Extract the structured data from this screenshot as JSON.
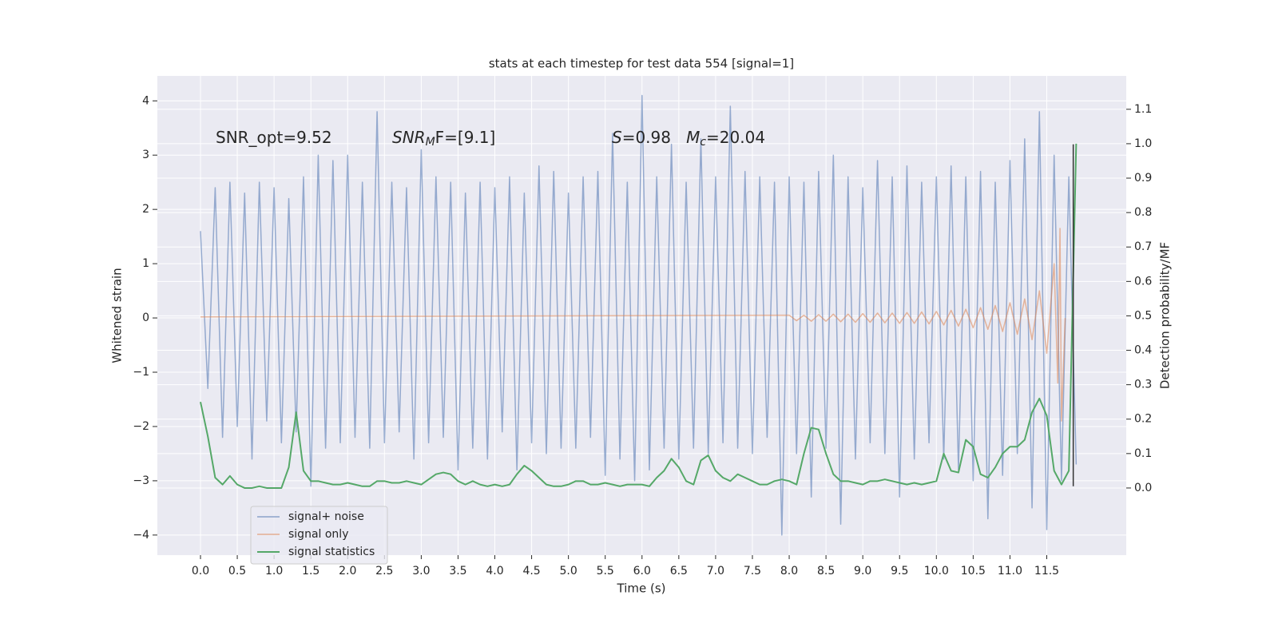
{
  "chart_data": {
    "type": "line",
    "title": "stats at each timestep for test data 554 [signal=1]",
    "x_label": "Time (s)",
    "y_label": "Whitened strain",
    "y2_label": "Detection probability/MF",
    "xlim": [
      -0.586,
      12.58
    ],
    "ylim": [
      -4.37,
      4.46
    ],
    "y2lim": [
      -0.195,
      1.197
    ],
    "xticks": [
      {
        "value": 0,
        "label": "0.0"
      },
      {
        "value": 0.5,
        "label": "0.5"
      },
      {
        "value": 1,
        "label": "1.0"
      },
      {
        "value": 1.5,
        "label": "1.5"
      },
      {
        "value": 2,
        "label": "2.0"
      },
      {
        "value": 2.5,
        "label": "2.5"
      },
      {
        "value": 3,
        "label": "3.0"
      },
      {
        "value": 3.5,
        "label": "3.5"
      },
      {
        "value": 4,
        "label": "4.0"
      },
      {
        "value": 4.5,
        "label": "4.5"
      },
      {
        "value": 5,
        "label": "5.0"
      },
      {
        "value": 5.5,
        "label": "5.5"
      },
      {
        "value": 6,
        "label": "6.0"
      },
      {
        "value": 6.5,
        "label": "6.5"
      },
      {
        "value": 7,
        "label": "7.0"
      },
      {
        "value": 7.5,
        "label": "7.5"
      },
      {
        "value": 8,
        "label": "8.0"
      },
      {
        "value": 8.5,
        "label": "8.5"
      },
      {
        "value": 9,
        "label": "9.0"
      },
      {
        "value": 9.5,
        "label": "9.5"
      },
      {
        "value": 10,
        "label": "10.0"
      },
      {
        "value": 10.5,
        "label": "10.5"
      },
      {
        "value": 11,
        "label": "11.0"
      },
      {
        "value": 11.5,
        "label": "11.5"
      }
    ],
    "yticks": [
      {
        "value": -4,
        "label": "−4"
      },
      {
        "value": -3,
        "label": "−3"
      },
      {
        "value": -2,
        "label": "−2"
      },
      {
        "value": -1,
        "label": "−1"
      },
      0,
      1,
      2,
      3,
      4
    ],
    "y2ticks": [
      {
        "value": 0,
        "label": "0.0"
      },
      {
        "value": 0.1,
        "label": "0.1"
      },
      {
        "value": 0.2,
        "label": "0.2"
      },
      {
        "value": 0.3,
        "label": "0.3"
      },
      {
        "value": 0.4,
        "label": "0.4"
      },
      {
        "value": 0.5,
        "label": "0.5"
      },
      {
        "value": 0.6,
        "label": "0.6"
      },
      {
        "value": 0.7,
        "label": "0.7"
      },
      {
        "value": 0.8,
        "label": "0.8"
      },
      {
        "value": 0.9,
        "label": "0.9"
      },
      {
        "value": 1.0,
        "label": "1.0"
      },
      {
        "value": 1.1,
        "label": "1.1"
      }
    ],
    "grid": true,
    "legend": "lower left",
    "series": [
      {
        "name": "signal+ noise",
        "color": "#4c72b0",
        "x": [
          0,
          0.1,
          0.2,
          0.3,
          0.4,
          0.5,
          0.6,
          0.7,
          0.8,
          0.9,
          1,
          1.1,
          1.2,
          1.3,
          1.4,
          1.5,
          1.6,
          1.7,
          1.8,
          1.9,
          2,
          2.1,
          2.2,
          2.3,
          2.4,
          2.5,
          2.6,
          2.7,
          2.8,
          2.9,
          3,
          3.1,
          3.2,
          3.3,
          3.4,
          3.5,
          3.6,
          3.7,
          3.8,
          3.9,
          4,
          4.1,
          4.2,
          4.3,
          4.4,
          4.5,
          4.6,
          4.7,
          4.8,
          4.9,
          5,
          5.1,
          5.2,
          5.3,
          5.4,
          5.5,
          5.6,
          5.7,
          5.8,
          5.9,
          6,
          6.1,
          6.2,
          6.3,
          6.4,
          6.5,
          6.6,
          6.7,
          6.8,
          6.9,
          7,
          7.1,
          7.2,
          7.3,
          7.4,
          7.5,
          7.6,
          7.7,
          7.8,
          7.9,
          8,
          8.1,
          8.2,
          8.3,
          8.4,
          8.5,
          8.6,
          8.7,
          8.8,
          8.9,
          9,
          9.1,
          9.2,
          9.3,
          9.4,
          9.5,
          9.6,
          9.7,
          9.8,
          9.9,
          10,
          10.1,
          10.2,
          10.3,
          10.4,
          10.5,
          10.6,
          10.7,
          10.8,
          10.9,
          11,
          11.1,
          11.2,
          11.3,
          11.4,
          11.5,
          11.6,
          11.7,
          11.8,
          11.9
        ],
        "values": [
          1.6,
          -1.3,
          2.4,
          -2.2,
          2.5,
          -2.0,
          2.3,
          -2.6,
          2.5,
          -1.9,
          2.4,
          -2.3,
          2.2,
          -2.1,
          2.6,
          -3.1,
          3.0,
          -2.4,
          2.9,
          -2.3,
          3.0,
          -2.2,
          2.5,
          -2.4,
          3.8,
          -2.3,
          2.5,
          -2.1,
          2.4,
          -2.6,
          3.1,
          -2.3,
          2.6,
          -2.2,
          2.5,
          -2.8,
          2.3,
          -2.4,
          2.5,
          -2.6,
          2.4,
          -2.1,
          2.6,
          -2.8,
          2.3,
          -2.3,
          2.8,
          -2.5,
          2.7,
          -2.4,
          2.3,
          -2.4,
          2.6,
          -2.2,
          2.7,
          -2.9,
          3.4,
          -2.6,
          2.5,
          -3.0,
          4.1,
          -2.8,
          2.6,
          -2.4,
          3.2,
          -2.6,
          2.5,
          -2.4,
          3.3,
          -2.5,
          2.6,
          -2.3,
          3.9,
          -2.4,
          2.7,
          -2.5,
          2.6,
          -2.2,
          2.5,
          -4.0,
          2.6,
          -2.5,
          2.5,
          -3.3,
          2.7,
          -2.4,
          3.0,
          -3.8,
          2.6,
          -2.6,
          2.4,
          -2.3,
          2.9,
          -2.5,
          2.6,
          -3.3,
          2.8,
          -2.6,
          2.5,
          -2.3,
          2.6,
          -2.6,
          2.8,
          -2.8,
          2.6,
          -3.0,
          2.7,
          -3.7,
          2.5,
          -2.9,
          2.9,
          -2.5,
          3.3,
          -3.5,
          3.8,
          -3.9,
          3.0,
          -3.0,
          2.6,
          -2.7
        ]
      },
      {
        "name": "signal only",
        "color": "#dd8452",
        "x": [
          0,
          8,
          8.1,
          8.2,
          8.3,
          8.4,
          8.5,
          8.6,
          8.7,
          8.8,
          8.9,
          9,
          9.1,
          9.2,
          9.3,
          9.4,
          9.5,
          9.6,
          9.7,
          9.8,
          9.9,
          10,
          10.1,
          10.2,
          10.3,
          10.4,
          10.5,
          10.6,
          10.7,
          10.8,
          10.9,
          11,
          11.1,
          11.2,
          11.3,
          11.4,
          11.5,
          11.6,
          11.65,
          11.68,
          11.7,
          11.75
        ],
        "values": [
          0.02,
          0.05,
          -0.05,
          0.05,
          -0.06,
          0.06,
          -0.06,
          0.07,
          -0.07,
          0.07,
          -0.08,
          0.08,
          -0.08,
          0.09,
          -0.09,
          0.09,
          -0.1,
          0.1,
          -0.1,
          0.11,
          -0.11,
          0.12,
          -0.13,
          0.14,
          -0.15,
          0.16,
          -0.18,
          0.19,
          -0.21,
          0.23,
          -0.25,
          0.28,
          -0.3,
          0.35,
          -0.4,
          0.5,
          -0.65,
          1.0,
          -1.2,
          1.65,
          -1.9,
          0
        ]
      },
      {
        "name": "signal statistics",
        "color": "#55a868",
        "axis": "y2",
        "x": [
          0,
          0.1,
          0.2,
          0.3,
          0.4,
          0.5,
          0.6,
          0.7,
          0.8,
          0.9,
          1,
          1.1,
          1.2,
          1.3,
          1.4,
          1.5,
          1.6,
          1.7,
          1.8,
          1.9,
          2,
          2.1,
          2.2,
          2.3,
          2.4,
          2.5,
          2.6,
          2.7,
          2.8,
          2.9,
          3,
          3.1,
          3.2,
          3.3,
          3.4,
          3.5,
          3.6,
          3.7,
          3.8,
          3.9,
          4,
          4.1,
          4.2,
          4.3,
          4.4,
          4.5,
          4.6,
          4.7,
          4.8,
          4.9,
          5,
          5.1,
          5.2,
          5.3,
          5.4,
          5.5,
          5.6,
          5.7,
          5.8,
          5.9,
          6,
          6.1,
          6.2,
          6.3,
          6.4,
          6.5,
          6.6,
          6.7,
          6.8,
          6.9,
          7,
          7.1,
          7.2,
          7.3,
          7.4,
          7.5,
          7.6,
          7.7,
          7.8,
          7.9,
          8,
          8.1,
          8.2,
          8.3,
          8.4,
          8.5,
          8.6,
          8.7,
          8.8,
          8.9,
          9,
          9.1,
          9.2,
          9.3,
          9.4,
          9.5,
          9.6,
          9.7,
          9.8,
          9.9,
          10,
          10.1,
          10.2,
          10.3,
          10.4,
          10.5,
          10.6,
          10.7,
          10.8,
          10.9,
          11,
          11.1,
          11.2,
          11.3,
          11.4,
          11.5,
          11.6,
          11.7,
          11.8,
          11.9
        ],
        "values": [
          0.25,
          0.15,
          0.03,
          0.01,
          0.035,
          0.01,
          0.0,
          0.0,
          0.005,
          0.0,
          0.0,
          0.0,
          0.06,
          0.22,
          0.05,
          0.02,
          0.02,
          0.015,
          0.01,
          0.01,
          0.015,
          0.01,
          0.005,
          0.005,
          0.02,
          0.02,
          0.015,
          0.015,
          0.02,
          0.015,
          0.01,
          0.025,
          0.04,
          0.045,
          0.04,
          0.02,
          0.01,
          0.02,
          0.01,
          0.005,
          0.01,
          0.005,
          0.01,
          0.04,
          0.065,
          0.05,
          0.03,
          0.01,
          0.005,
          0.005,
          0.01,
          0.02,
          0.02,
          0.01,
          0.01,
          0.015,
          0.01,
          0.005,
          0.01,
          0.01,
          0.01,
          0.005,
          0.03,
          0.05,
          0.085,
          0.06,
          0.02,
          0.01,
          0.08,
          0.095,
          0.05,
          0.03,
          0.02,
          0.04,
          0.03,
          0.02,
          0.01,
          0.01,
          0.02,
          0.025,
          0.02,
          0.01,
          0.1,
          0.175,
          0.17,
          0.1,
          0.04,
          0.02,
          0.02,
          0.015,
          0.01,
          0.02,
          0.02,
          0.025,
          0.02,
          0.015,
          0.01,
          0.015,
          0.01,
          0.015,
          0.02,
          0.1,
          0.05,
          0.045,
          0.14,
          0.12,
          0.04,
          0.03,
          0.06,
          0.1,
          0.12,
          0.12,
          0.14,
          0.22,
          0.26,
          0.21,
          0.05,
          0.01,
          0.05,
          1.0
        ]
      }
    ],
    "vline": {
      "x": 11.86,
      "ymin": -3.1,
      "ymax": 3.2,
      "color": "#333333"
    },
    "annotations": [
      {
        "parts": [
          {
            "text": "SNR_opt=9.52"
          }
        ]
      },
      {
        "parts": [
          {
            "text": "SNR",
            "italic": true
          },
          {
            "text": "M",
            "italic": true,
            "sub": true
          },
          {
            "text": "F=[9.1]"
          }
        ]
      },
      {
        "parts": [
          {
            "text": "S",
            "italic": true
          },
          {
            "text": "=0.98   "
          },
          {
            "text": "M",
            "italic": true
          },
          {
            "text": "c",
            "italic": true,
            "sub": true
          },
          {
            "text": "=20.04"
          }
        ]
      }
    ]
  }
}
